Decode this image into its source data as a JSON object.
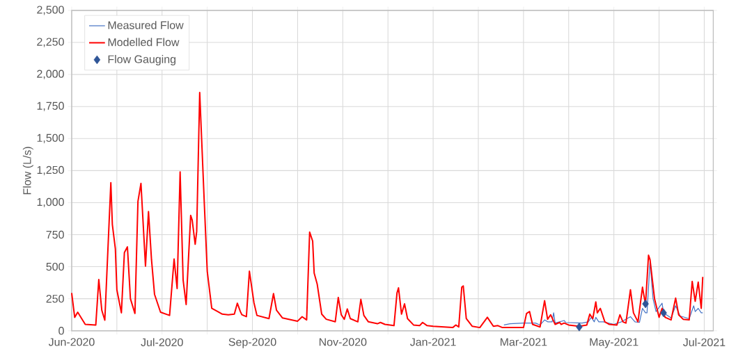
{
  "chart_data": {
    "type": "line",
    "ylabel": "Flow (L/s)",
    "xlim": [
      "2020-06-01",
      "2021-08-01"
    ],
    "xticks": [
      {
        "value": "2020-06-01",
        "label": "Jun-2020"
      },
      {
        "value": "2020-07-01",
        "label": null
      },
      {
        "value": "2020-07-31",
        "label": "Jul-2020"
      },
      {
        "value": "2020-08-30",
        "label": null
      },
      {
        "value": "2020-09-29",
        "label": "Sep-2020"
      },
      {
        "value": "2020-10-29",
        "label": null
      },
      {
        "value": "2020-11-28",
        "label": "Nov-2020"
      },
      {
        "value": "2020-12-28",
        "label": null
      },
      {
        "value": "2021-01-27",
        "label": "Jan-2021"
      },
      {
        "value": "2021-02-26",
        "label": null
      },
      {
        "value": "2021-03-28",
        "label": "Mar-2021"
      },
      {
        "value": "2021-04-27",
        "label": null
      },
      {
        "value": "2021-05-27",
        "label": "May-2021"
      },
      {
        "value": "2021-06-26",
        "label": null
      },
      {
        "value": "2021-07-26",
        "label": "Jul-2021"
      }
    ],
    "ylim": [
      0,
      2500
    ],
    "yticks": [
      0,
      250,
      500,
      750,
      {
        "value": 1000,
        "label": "1,000"
      },
      {
        "value": 1250,
        "label": "1,250"
      },
      {
        "value": 1500,
        "label": "1,500"
      },
      {
        "value": 1750,
        "label": "1,750"
      },
      {
        "value": 2000,
        "label": "2,000"
      },
      {
        "value": 2250,
        "label": "2,250"
      },
      {
        "value": 2500,
        "label": "2,500"
      }
    ],
    "grid": true,
    "legend": "top left",
    "series": [
      {
        "name": "Measured Flow",
        "color": "#4472c4",
        "marker": "none",
        "x": [
          "2021-03-15",
          "2021-03-19",
          "2021-03-28",
          "2021-04-05",
          "2021-04-08",
          "2021-04-11",
          "2021-04-13",
          "2021-04-16",
          "2021-04-17",
          "2021-04-18",
          "2021-04-24",
          "2021-04-25",
          "2021-05-06",
          "2021-05-10",
          "2021-05-12",
          "2021-05-14",
          "2021-05-15",
          "2021-05-17",
          "2021-05-20",
          "2021-05-27",
          "2021-06-01",
          "2021-06-07",
          "2021-06-10",
          "2021-06-13",
          "2021-06-15",
          "2021-06-17",
          "2021-06-18",
          "2021-06-20",
          "2021-06-22",
          "2021-06-24",
          "2021-06-28",
          "2021-06-29",
          "2021-07-04",
          "2021-07-07",
          "2021-07-10",
          "2021-07-16",
          "2021-07-19",
          "2021-07-20",
          "2021-07-22",
          "2021-07-24",
          "2021-07-25"
        ],
        "values": [
          45,
          55,
          60,
          60,
          45,
          85,
          70,
          70,
          140,
          60,
          80,
          65,
          60,
          70,
          105,
          70,
          105,
          70,
          70,
          50,
          70,
          110,
          70,
          65,
          175,
          140,
          140,
          540,
          250,
          150,
          215,
          140,
          100,
          195,
          115,
          95,
          195,
          150,
          175,
          140,
          140
        ]
      },
      {
        "name": "Modelled Flow",
        "color": "#ff0000",
        "marker": "none",
        "x": [
          "2020-06-01",
          "2020-06-03",
          "2020-06-05",
          "2020-06-10",
          "2020-06-17",
          "2020-06-19",
          "2020-06-21",
          "2020-06-23",
          "2020-06-27",
          "2020-06-28",
          "2020-06-30",
          "2020-07-01",
          "2020-07-04",
          "2020-07-06",
          "2020-07-08",
          "2020-07-10",
          "2020-07-13",
          "2020-07-15",
          "2020-07-17",
          "2020-07-20",
          "2020-07-22",
          "2020-07-24",
          "2020-07-26",
          "2020-07-30",
          "2020-08-05",
          "2020-08-08",
          "2020-08-10",
          "2020-08-12",
          "2020-08-14",
          "2020-08-16",
          "2020-08-19",
          "2020-08-20",
          "2020-08-22",
          "2020-08-23",
          "2020-08-25",
          "2020-08-28",
          "2020-08-30",
          "2020-09-02",
          "2020-09-06",
          "2020-09-09",
          "2020-09-13",
          "2020-09-17",
          "2020-09-19",
          "2020-09-21",
          "2020-09-22",
          "2020-09-25",
          "2020-09-27",
          "2020-09-30",
          "2020-10-02",
          "2020-10-10",
          "2020-10-13",
          "2020-10-15",
          "2020-10-19",
          "2020-10-29",
          "2020-11-01",
          "2020-11-04",
          "2020-11-06",
          "2020-11-08",
          "2020-11-09",
          "2020-11-11",
          "2020-11-14",
          "2020-11-17",
          "2020-11-23",
          "2020-11-25",
          "2020-11-27",
          "2020-11-29",
          "2020-12-01",
          "2020-12-03",
          "2020-12-08",
          "2020-12-10",
          "2020-12-12",
          "2020-12-15",
          "2020-12-21",
          "2020-12-23",
          "2020-12-26",
          "2021-01-01",
          "2021-01-03",
          "2021-01-04",
          "2021-01-06",
          "2021-01-08",
          "2021-01-10",
          "2021-01-14",
          "2021-01-18",
          "2021-01-20",
          "2021-01-23",
          "2021-01-27",
          "2021-02-09",
          "2021-02-11",
          "2021-02-13",
          "2021-02-15",
          "2021-02-16",
          "2021-02-18",
          "2021-02-22",
          "2021-02-27",
          "2021-03-04",
          "2021-03-08",
          "2021-03-11",
          "2021-03-14",
          "2021-03-28",
          "2021-03-30",
          "2021-04-01",
          "2021-04-03",
          "2021-04-08",
          "2021-04-11",
          "2021-04-13",
          "2021-04-15",
          "2021-04-18",
          "2021-04-21",
          "2021-04-22",
          "2021-04-24",
          "2021-04-27",
          "2021-05-04",
          "2021-05-09",
          "2021-05-11",
          "2021-05-13",
          "2021-05-15",
          "2021-05-16",
          "2021-05-18",
          "2021-05-21",
          "2021-05-24",
          "2021-05-29",
          "2021-05-31",
          "2021-06-02",
          "2021-06-04",
          "2021-06-07",
          "2021-06-09",
          "2021-06-12",
          "2021-06-15",
          "2021-06-17",
          "2021-06-19",
          "2021-06-20",
          "2021-06-23",
          "2021-06-26",
          "2021-06-28",
          "2021-06-30",
          "2021-07-04",
          "2021-07-07",
          "2021-07-09",
          "2021-07-12",
          "2021-07-16",
          "2021-07-18",
          "2021-07-20",
          "2021-07-22",
          "2021-07-24",
          "2021-07-25"
        ],
        "values": [
          295,
          105,
          145,
          50,
          45,
          400,
          160,
          83,
          1155,
          830,
          640,
          320,
          140,
          610,
          655,
          250,
          135,
          1010,
          1150,
          505,
          930,
          555,
          285,
          145,
          120,
          560,
          330,
          1240,
          395,
          205,
          900,
          865,
          675,
          775,
          1860,
          1010,
          465,
          175,
          150,
          130,
          125,
          130,
          215,
          150,
          125,
          110,
          465,
          220,
          120,
          95,
          290,
          160,
          100,
          75,
          110,
          85,
          770,
          700,
          450,
          365,
          130,
          90,
          70,
          260,
          125,
          90,
          170,
          95,
          70,
          245,
          120,
          70,
          55,
          65,
          50,
          40,
          295,
          335,
          130,
          210,
          95,
          45,
          40,
          65,
          40,
          35,
          25,
          45,
          30,
          340,
          350,
          95,
          35,
          25,
          105,
          35,
          40,
          25,
          25,
          135,
          150,
          50,
          30,
          235,
          90,
          125,
          50,
          65,
          50,
          60,
          45,
          35,
          45,
          130,
          95,
          225,
          140,
          175,
          70,
          50,
          45,
          125,
          70,
          60,
          320,
          140,
          70,
          340,
          205,
          590,
          555,
          250,
          105,
          175,
          105,
          85,
          255,
          125,
          90,
          85,
          385,
          230,
          380,
          175,
          420
        ]
      },
      {
        "name": "Flow Gauging",
        "type": "scatter",
        "color": "#2f5597",
        "marker": "diamond",
        "x": [
          "2021-05-04",
          "2021-06-17",
          "2021-06-29"
        ],
        "values": [
          30,
          210,
          140
        ]
      }
    ]
  }
}
